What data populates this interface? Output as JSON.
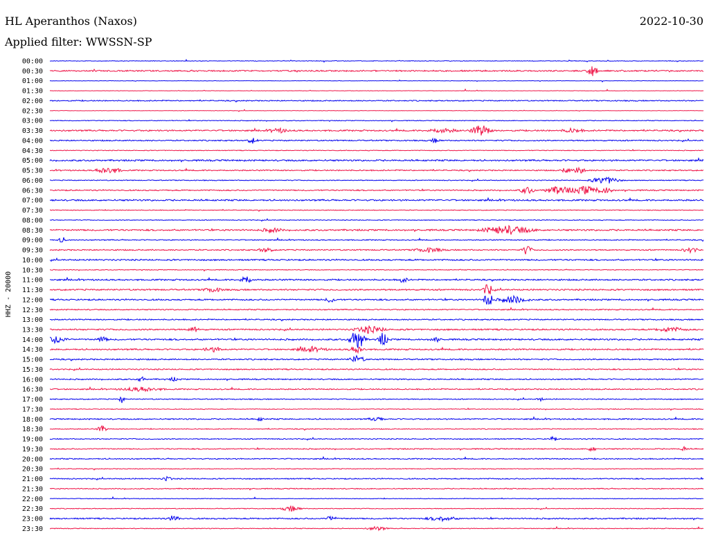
{
  "header": {
    "station": "HL Aperanthos (Naxos)",
    "date": "2022-10-30",
    "filter": "Applied filter: WWSSN-SP"
  },
  "chart_data": {
    "type": "line",
    "title": "HL Aperanthos (Naxos)",
    "ylabel": "HHZ - 20000",
    "colors": {
      "even": "#0000ee",
      "odd": "#ee1144"
    },
    "rows": [
      "00:00",
      "00:30",
      "01:00",
      "01:30",
      "02:00",
      "02:30",
      "03:00",
      "03:30",
      "04:00",
      "04:30",
      "05:00",
      "05:30",
      "06:00",
      "06:30",
      "07:00",
      "07:30",
      "08:00",
      "08:30",
      "09:00",
      "09:30",
      "10:00",
      "10:30",
      "11:00",
      "11:30",
      "12:00",
      "12:30",
      "13:00",
      "13:30",
      "14:00",
      "14:30",
      "15:00",
      "15:30",
      "16:00",
      "16:30",
      "17:00",
      "17:30",
      "18:00",
      "18:30",
      "19:00",
      "19:30",
      "20:00",
      "20:30",
      "21:00",
      "21:30",
      "22:00",
      "22:30",
      "23:00",
      "23:30"
    ],
    "noise": [
      0.5,
      1.1,
      0.3,
      0.3,
      0.9,
      0.3,
      0.6,
      1.2,
      1.0,
      0.6,
      1.3,
      1.0,
      0.7,
      1.0,
      1.3,
      0.6,
      0.6,
      1.3,
      0.8,
      1.0,
      1.2,
      0.6,
      1.2,
      1.2,
      1.2,
      0.9,
      1.0,
      1.2,
      1.3,
      1.2,
      1.1,
      1.0,
      1.0,
      1.0,
      0.8,
      0.6,
      1.0,
      0.7,
      0.8,
      0.9,
      0.9,
      0.6,
      0.9,
      0.8,
      0.5,
      0.6,
      1.1,
      0.6
    ],
    "events": [
      {
        "row": 1,
        "x": 0.83,
        "amp": 9,
        "dur": 0.01
      },
      {
        "row": 7,
        "x": 0.35,
        "amp": 3,
        "dur": 0.02
      },
      {
        "row": 7,
        "x": 0.6,
        "amp": 3,
        "dur": 0.03
      },
      {
        "row": 7,
        "x": 0.66,
        "amp": 8,
        "dur": 0.02
      },
      {
        "row": 7,
        "x": 0.8,
        "amp": 3,
        "dur": 0.02
      },
      {
        "row": 8,
        "x": 0.31,
        "amp": 4,
        "dur": 0.01
      },
      {
        "row": 8,
        "x": 0.59,
        "amp": 3,
        "dur": 0.01
      },
      {
        "row": 11,
        "x": 0.09,
        "amp": 5,
        "dur": 0.025
      },
      {
        "row": 11,
        "x": 0.79,
        "amp": 4,
        "dur": 0.01
      },
      {
        "row": 11,
        "x": 0.81,
        "amp": 8,
        "dur": 0.01
      },
      {
        "row": 12,
        "x": 0.85,
        "amp": 5,
        "dur": 0.03
      },
      {
        "row": 13,
        "x": 0.73,
        "amp": 5,
        "dur": 0.015
      },
      {
        "row": 13,
        "x": 0.78,
        "amp": 6,
        "dur": 0.03
      },
      {
        "row": 13,
        "x": 0.82,
        "amp": 6,
        "dur": 0.025
      },
      {
        "row": 13,
        "x": 0.85,
        "amp": 5,
        "dur": 0.015
      },
      {
        "row": 17,
        "x": 0.34,
        "amp": 3,
        "dur": 0.02
      },
      {
        "row": 17,
        "x": 0.7,
        "amp": 6,
        "dur": 0.05
      },
      {
        "row": 18,
        "x": 0.02,
        "amp": 4,
        "dur": 0.01
      },
      {
        "row": 19,
        "x": 0.33,
        "amp": 3,
        "dur": 0.015
      },
      {
        "row": 19,
        "x": 0.58,
        "amp": 3,
        "dur": 0.03
      },
      {
        "row": 19,
        "x": 0.73,
        "amp": 7,
        "dur": 0.01
      },
      {
        "row": 19,
        "x": 0.98,
        "amp": 4,
        "dur": 0.015
      },
      {
        "row": 22,
        "x": 0.3,
        "amp": 6,
        "dur": 0.012
      },
      {
        "row": 22,
        "x": 0.54,
        "amp": 4,
        "dur": 0.01
      },
      {
        "row": 23,
        "x": 0.25,
        "amp": 3,
        "dur": 0.02
      },
      {
        "row": 23,
        "x": 0.67,
        "amp": 9,
        "dur": 0.01
      },
      {
        "row": 24,
        "x": 0.43,
        "amp": 4,
        "dur": 0.01
      },
      {
        "row": 24,
        "x": 0.67,
        "amp": 12,
        "dur": 0.01
      },
      {
        "row": 24,
        "x": 0.71,
        "amp": 5,
        "dur": 0.03
      },
      {
        "row": 27,
        "x": 0.22,
        "amp": 4,
        "dur": 0.01
      },
      {
        "row": 27,
        "x": 0.49,
        "amp": 5,
        "dur": 0.03
      },
      {
        "row": 27,
        "x": 0.95,
        "amp": 3,
        "dur": 0.03
      },
      {
        "row": 28,
        "x": 0.01,
        "amp": 5,
        "dur": 0.02
      },
      {
        "row": 28,
        "x": 0.08,
        "amp": 4,
        "dur": 0.01
      },
      {
        "row": 28,
        "x": 0.47,
        "amp": 16,
        "dur": 0.015
      },
      {
        "row": 28,
        "x": 0.51,
        "amp": 10,
        "dur": 0.01
      },
      {
        "row": 28,
        "x": 0.59,
        "amp": 3,
        "dur": 0.01
      },
      {
        "row": 29,
        "x": 0.25,
        "amp": 3,
        "dur": 0.02
      },
      {
        "row": 29,
        "x": 0.4,
        "amp": 3,
        "dur": 0.03
      },
      {
        "row": 29,
        "x": 0.47,
        "amp": 5,
        "dur": 0.015
      },
      {
        "row": 30,
        "x": 0.47,
        "amp": 5,
        "dur": 0.015
      },
      {
        "row": 32,
        "x": 0.14,
        "amp": 4,
        "dur": 0.008
      },
      {
        "row": 32,
        "x": 0.19,
        "amp": 3,
        "dur": 0.008
      },
      {
        "row": 33,
        "x": 0.14,
        "amp": 3,
        "dur": 0.04
      },
      {
        "row": 34,
        "x": 0.11,
        "amp": 5,
        "dur": 0.006
      },
      {
        "row": 34,
        "x": 0.75,
        "amp": 3,
        "dur": 0.006
      },
      {
        "row": 36,
        "x": 0.32,
        "amp": 3,
        "dur": 0.008
      },
      {
        "row": 36,
        "x": 0.5,
        "amp": 3,
        "dur": 0.015
      },
      {
        "row": 37,
        "x": 0.08,
        "amp": 5,
        "dur": 0.01
      },
      {
        "row": 38,
        "x": 0.77,
        "amp": 5,
        "dur": 0.006
      },
      {
        "row": 39,
        "x": 0.83,
        "amp": 4,
        "dur": 0.008
      },
      {
        "row": 39,
        "x": 0.97,
        "amp": 3,
        "dur": 0.008
      },
      {
        "row": 42,
        "x": 0.18,
        "amp": 3,
        "dur": 0.01
      },
      {
        "row": 45,
        "x": 0.37,
        "amp": 4,
        "dur": 0.02
      },
      {
        "row": 46,
        "x": 0.19,
        "amp": 5,
        "dur": 0.01
      },
      {
        "row": 46,
        "x": 0.43,
        "amp": 4,
        "dur": 0.01
      },
      {
        "row": 46,
        "x": 0.6,
        "amp": 3,
        "dur": 0.03
      },
      {
        "row": 47,
        "x": 0.5,
        "amp": 3,
        "dur": 0.02
      }
    ]
  }
}
